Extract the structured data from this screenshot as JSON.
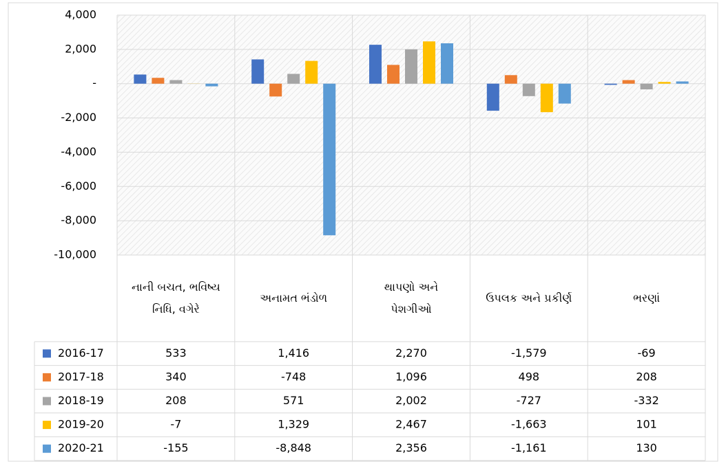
{
  "chart_data": {
    "type": "bar",
    "categories": [
      "નાની બચત, ભવિષ્ય નિધિ, વગેરે",
      "અનામત ભંડોળ",
      "થાપણો અને પેશગીઓ",
      "ઉપલક અને પ્રકીર્ણ",
      "ભરણાં"
    ],
    "series": [
      {
        "name": "2016-17",
        "color": "#4472c4",
        "values": [
          533,
          1416,
          2270,
          -1579,
          -69
        ],
        "value_labels": [
          "533",
          "1,416",
          "2,270",
          "-1,579",
          "-69"
        ]
      },
      {
        "name": "2017-18",
        "color": "#ed7d31",
        "values": [
          340,
          -748,
          1096,
          498,
          208
        ],
        "value_labels": [
          "340",
          "-748",
          "1,096",
          "498",
          "208"
        ]
      },
      {
        "name": "2018-19",
        "color": "#a5a5a5",
        "values": [
          208,
          571,
          2002,
          -727,
          -332
        ],
        "value_labels": [
          "208",
          "571",
          "2,002",
          "-727",
          "-332"
        ]
      },
      {
        "name": "2019-20",
        "color": "#ffc000",
        "values": [
          -7,
          1329,
          2467,
          -1663,
          101
        ],
        "value_labels": [
          "-7",
          "1,329",
          "2,467",
          "-1,663",
          "101"
        ]
      },
      {
        "name": "2020-21",
        "color": "#5b9bd5",
        "values": [
          -155,
          -8848,
          2356,
          -1161,
          130
        ],
        "value_labels": [
          "-155",
          "-8,848",
          "2,356",
          "-1,161",
          "130"
        ]
      }
    ],
    "ylim": [
      -10000,
      4000
    ],
    "yticks": [
      {
        "value": 4000,
        "label": "4,000"
      },
      {
        "value": 2000,
        "label": "2,000"
      },
      {
        "value": 0,
        "label": "-"
      },
      {
        "value": -2000,
        "label": "-2,000"
      },
      {
        "value": -4000,
        "label": "-4,000"
      },
      {
        "value": -6000,
        "label": "-6,000"
      },
      {
        "value": -8000,
        "label": "-8,000"
      },
      {
        "value": -10000,
        "label": "-10,000"
      }
    ],
    "grid": true
  }
}
